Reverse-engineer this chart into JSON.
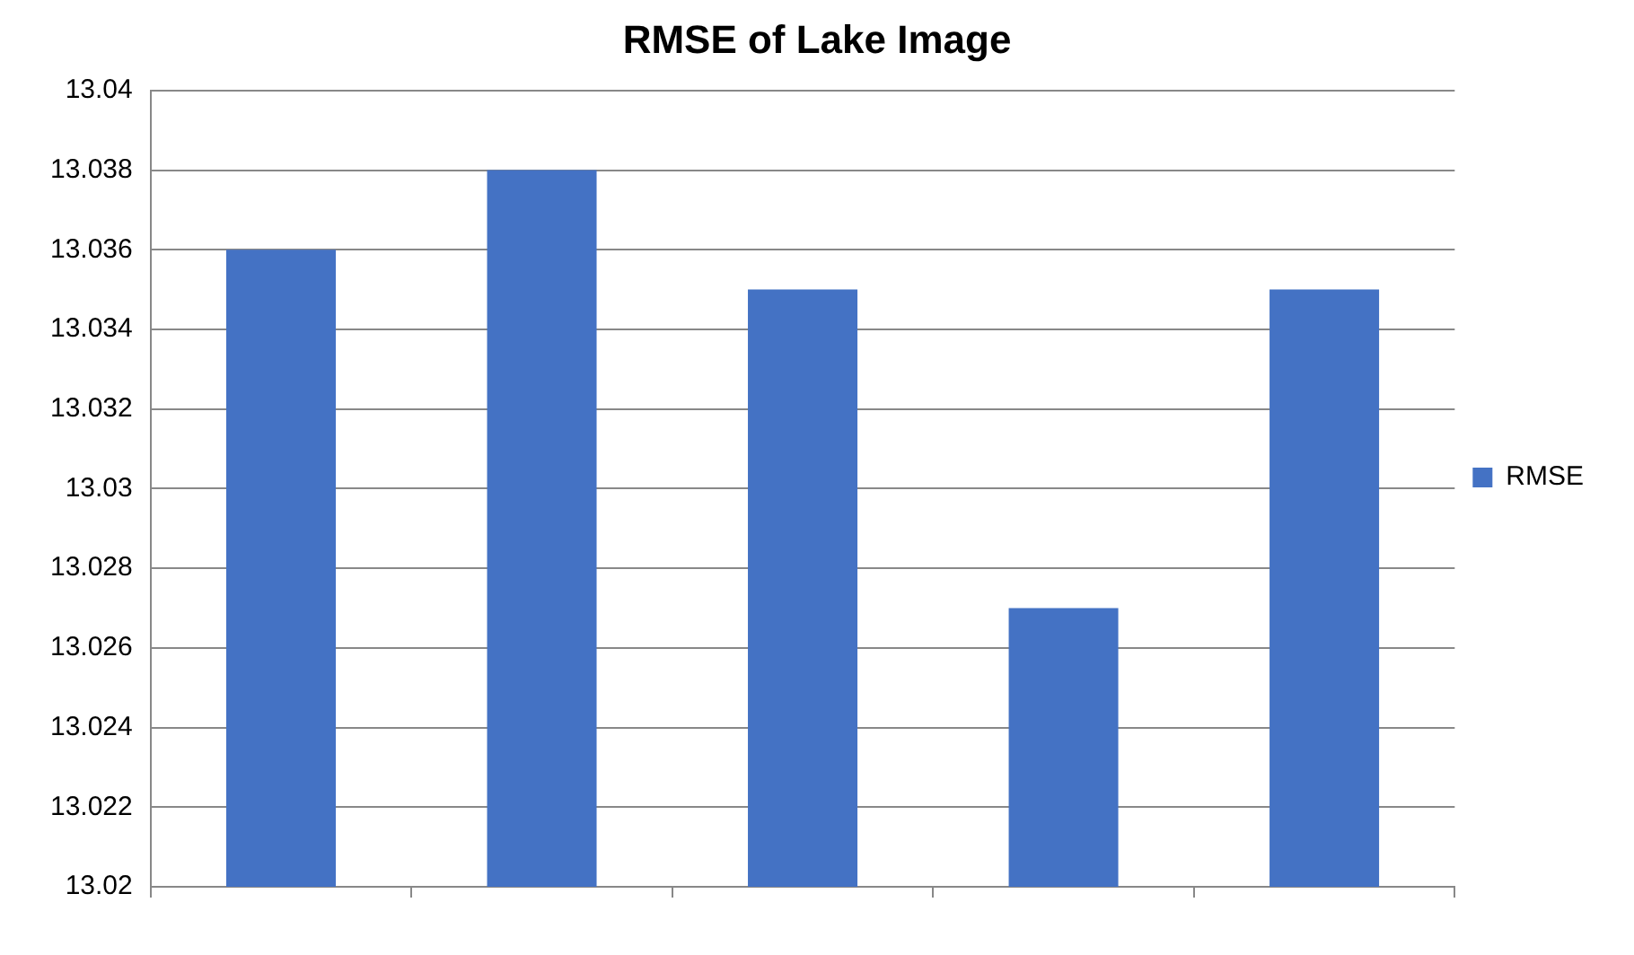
{
  "chart_data": {
    "type": "bar",
    "title": "RMSE of Lake Image",
    "categories": [
      null,
      null,
      null,
      null,
      null
    ],
    "series": [
      {
        "name": "RMSE",
        "color": "#4472c4",
        "values": [
          13.036,
          13.038,
          13.035,
          13.027,
          13.035
        ]
      }
    ],
    "ylim": [
      13.02,
      13.04
    ],
    "yticks": [
      13.02,
      13.022,
      13.024,
      13.026,
      13.028,
      13.03,
      13.032,
      13.034,
      13.036,
      13.038,
      13.04
    ],
    "grid": "y",
    "legend": "right"
  }
}
